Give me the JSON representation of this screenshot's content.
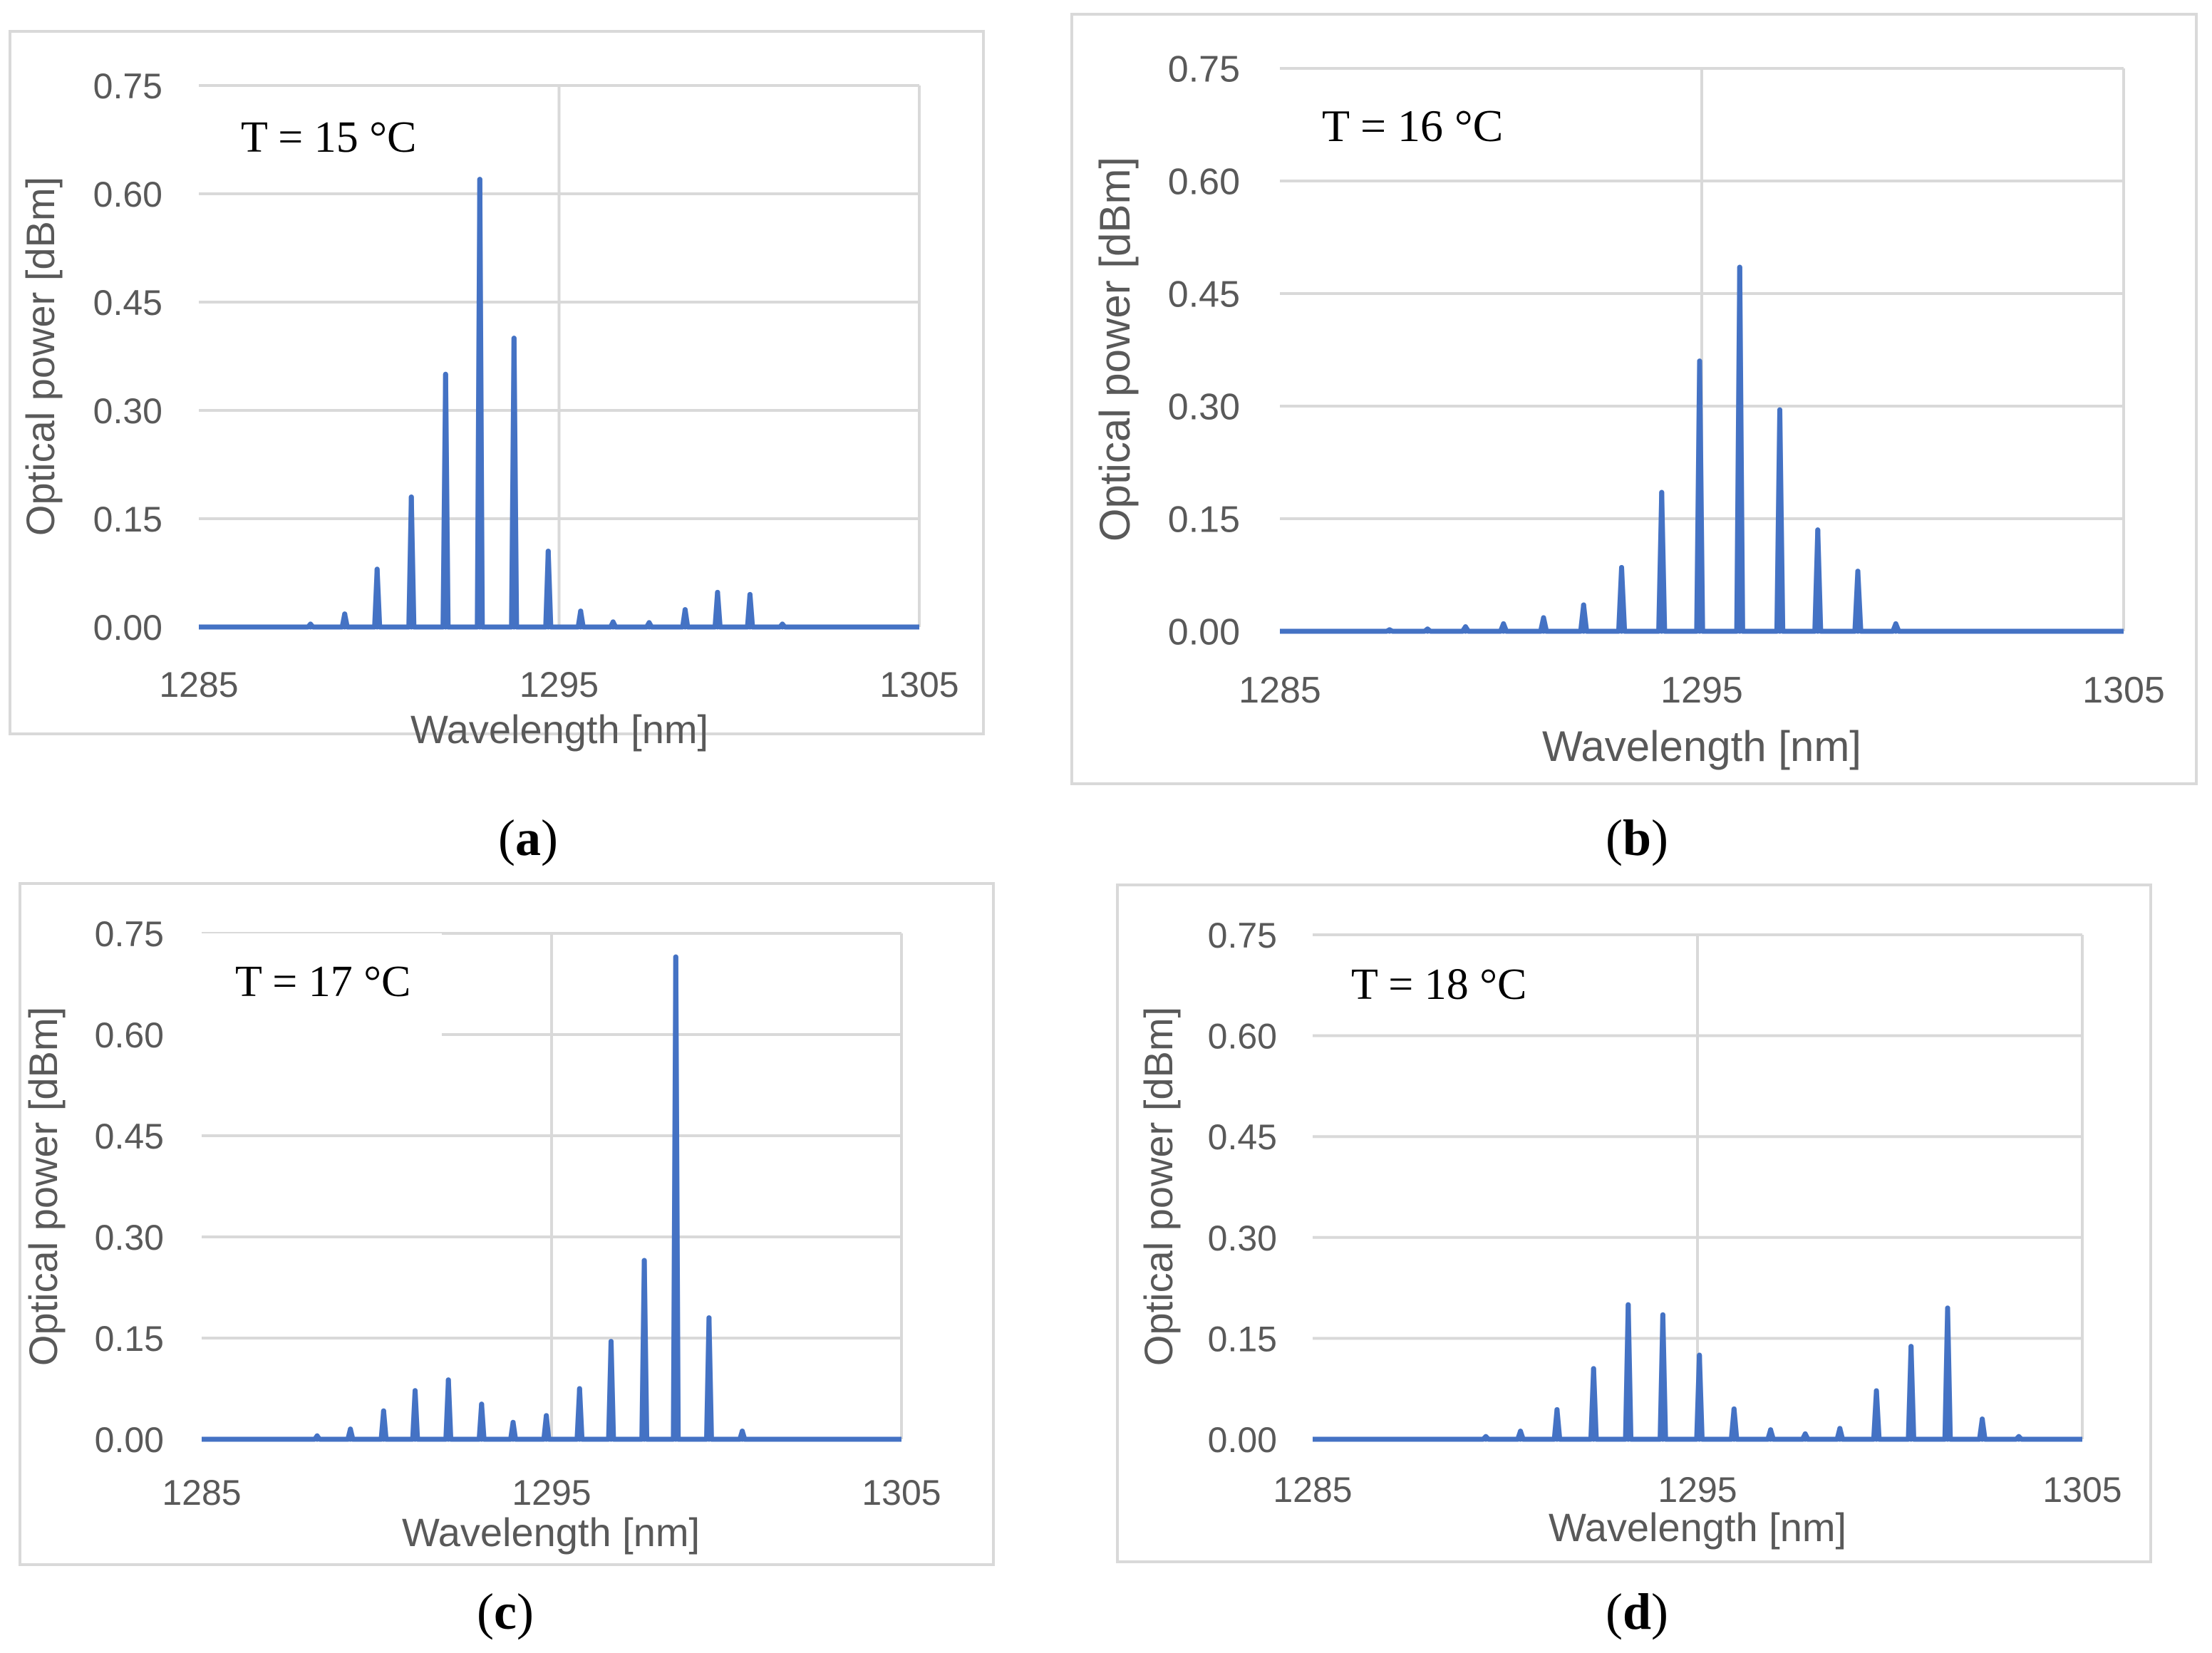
{
  "figure": {
    "subcaptions": [
      {
        "open": "(",
        "letter": "a",
        "close": ")"
      },
      {
        "open": "(",
        "letter": "b",
        "close": ")"
      },
      {
        "open": "(",
        "letter": "c",
        "close": ")"
      },
      {
        "open": "(",
        "letter": "d",
        "close": ")"
      }
    ]
  },
  "chart_data": [
    {
      "type": "line",
      "title": "T = 15 °C",
      "xlabel": "Wavelength [nm]",
      "ylabel": "Optical power [dBm]",
      "xlim": [
        1285,
        1305
      ],
      "ylim": [
        0,
        0.75
      ],
      "xticks": [
        "1285",
        "1295",
        "1305"
      ],
      "yticks": [
        "0.00",
        "0.15",
        "0.30",
        "0.45",
        "0.60",
        "0.75"
      ],
      "grid": true,
      "series": [
        {
          "name": "spectrum",
          "color": "#4472C4",
          "peaks": [
            {
              "x": 1288.1,
              "y": 0.004
            },
            {
              "x": 1289.05,
              "y": 0.018
            },
            {
              "x": 1289.95,
              "y": 0.08
            },
            {
              "x": 1290.9,
              "y": 0.18
            },
            {
              "x": 1291.85,
              "y": 0.35
            },
            {
              "x": 1292.8,
              "y": 0.62
            },
            {
              "x": 1293.75,
              "y": 0.4
            },
            {
              "x": 1294.7,
              "y": 0.105
            },
            {
              "x": 1295.6,
              "y": 0.022
            },
            {
              "x": 1296.5,
              "y": 0.007
            },
            {
              "x": 1297.5,
              "y": 0.006
            },
            {
              "x": 1298.5,
              "y": 0.024
            },
            {
              "x": 1299.4,
              "y": 0.048
            },
            {
              "x": 1300.3,
              "y": 0.045
            },
            {
              "x": 1301.2,
              "y": 0.004
            }
          ]
        }
      ]
    },
    {
      "type": "line",
      "title": "T = 16 °C",
      "xlabel": "Wavelength [nm]",
      "ylabel": "Optical power [dBm]",
      "xlim": [
        1285,
        1305
      ],
      "ylim": [
        0,
        0.75
      ],
      "xticks": [
        "1285",
        "1295",
        "1305"
      ],
      "yticks": [
        "0.00",
        "0.15",
        "0.30",
        "0.45",
        "0.60",
        "0.75"
      ],
      "grid": true,
      "series": [
        {
          "name": "spectrum",
          "color": "#4472C4",
          "peaks": [
            {
              "x": 1287.6,
              "y": 0.002
            },
            {
              "x": 1288.5,
              "y": 0.003
            },
            {
              "x": 1289.4,
              "y": 0.006
            },
            {
              "x": 1290.3,
              "y": 0.01
            },
            {
              "x": 1291.25,
              "y": 0.018
            },
            {
              "x": 1292.2,
              "y": 0.035
            },
            {
              "x": 1293.1,
              "y": 0.085
            },
            {
              "x": 1294.05,
              "y": 0.185
            },
            {
              "x": 1294.95,
              "y": 0.36
            },
            {
              "x": 1295.9,
              "y": 0.485
            },
            {
              "x": 1296.85,
              "y": 0.295
            },
            {
              "x": 1297.75,
              "y": 0.135
            },
            {
              "x": 1298.7,
              "y": 0.08
            },
            {
              "x": 1299.6,
              "y": 0.01
            }
          ]
        }
      ]
    },
    {
      "type": "line",
      "title": "T = 17 °C",
      "xlabel": "Wavelength [nm]",
      "ylabel": "Optical power [dBm]",
      "xlim": [
        1285,
        1305
      ],
      "ylim": [
        0,
        0.75
      ],
      "xticks": [
        "1285",
        "1295",
        "1305"
      ],
      "yticks": [
        "0.00",
        "0.15",
        "0.30",
        "0.45",
        "0.60",
        "0.75"
      ],
      "grid": true,
      "series": [
        {
          "name": "spectrum",
          "color": "#4472C4",
          "peaks": [
            {
              "x": 1288.3,
              "y": 0.005
            },
            {
              "x": 1289.25,
              "y": 0.015
            },
            {
              "x": 1290.2,
              "y": 0.042
            },
            {
              "x": 1291.1,
              "y": 0.072
            },
            {
              "x": 1292.05,
              "y": 0.088
            },
            {
              "x": 1293.0,
              "y": 0.052
            },
            {
              "x": 1293.9,
              "y": 0.025
            },
            {
              "x": 1294.85,
              "y": 0.035
            },
            {
              "x": 1295.8,
              "y": 0.075
            },
            {
              "x": 1296.7,
              "y": 0.145
            },
            {
              "x": 1297.65,
              "y": 0.265
            },
            {
              "x": 1298.55,
              "y": 0.715
            },
            {
              "x": 1299.5,
              "y": 0.18
            },
            {
              "x": 1300.45,
              "y": 0.012
            }
          ]
        }
      ]
    },
    {
      "type": "line",
      "title": "T = 18 °C",
      "xlabel": "Wavelength [nm]",
      "ylabel": "Optical power [dBm]",
      "xlim": [
        1285,
        1305
      ],
      "ylim": [
        0,
        0.75
      ],
      "xticks": [
        "1285",
        "1295",
        "1305"
      ],
      "yticks": [
        "0.00",
        "0.15",
        "0.30",
        "0.45",
        "0.60",
        "0.75"
      ],
      "grid": true,
      "series": [
        {
          "name": "spectrum",
          "color": "#4472C4",
          "peaks": [
            {
              "x": 1289.5,
              "y": 0.004
            },
            {
              "x": 1290.4,
              "y": 0.012
            },
            {
              "x": 1291.35,
              "y": 0.044
            },
            {
              "x": 1292.3,
              "y": 0.105
            },
            {
              "x": 1293.2,
              "y": 0.2
            },
            {
              "x": 1294.1,
              "y": 0.185
            },
            {
              "x": 1295.05,
              "y": 0.125
            },
            {
              "x": 1295.95,
              "y": 0.045
            },
            {
              "x": 1296.9,
              "y": 0.014
            },
            {
              "x": 1297.8,
              "y": 0.008
            },
            {
              "x": 1298.7,
              "y": 0.016
            },
            {
              "x": 1299.65,
              "y": 0.072
            },
            {
              "x": 1300.55,
              "y": 0.138
            },
            {
              "x": 1301.5,
              "y": 0.195
            },
            {
              "x": 1302.4,
              "y": 0.03
            },
            {
              "x": 1303.35,
              "y": 0.004
            }
          ]
        }
      ]
    }
  ]
}
